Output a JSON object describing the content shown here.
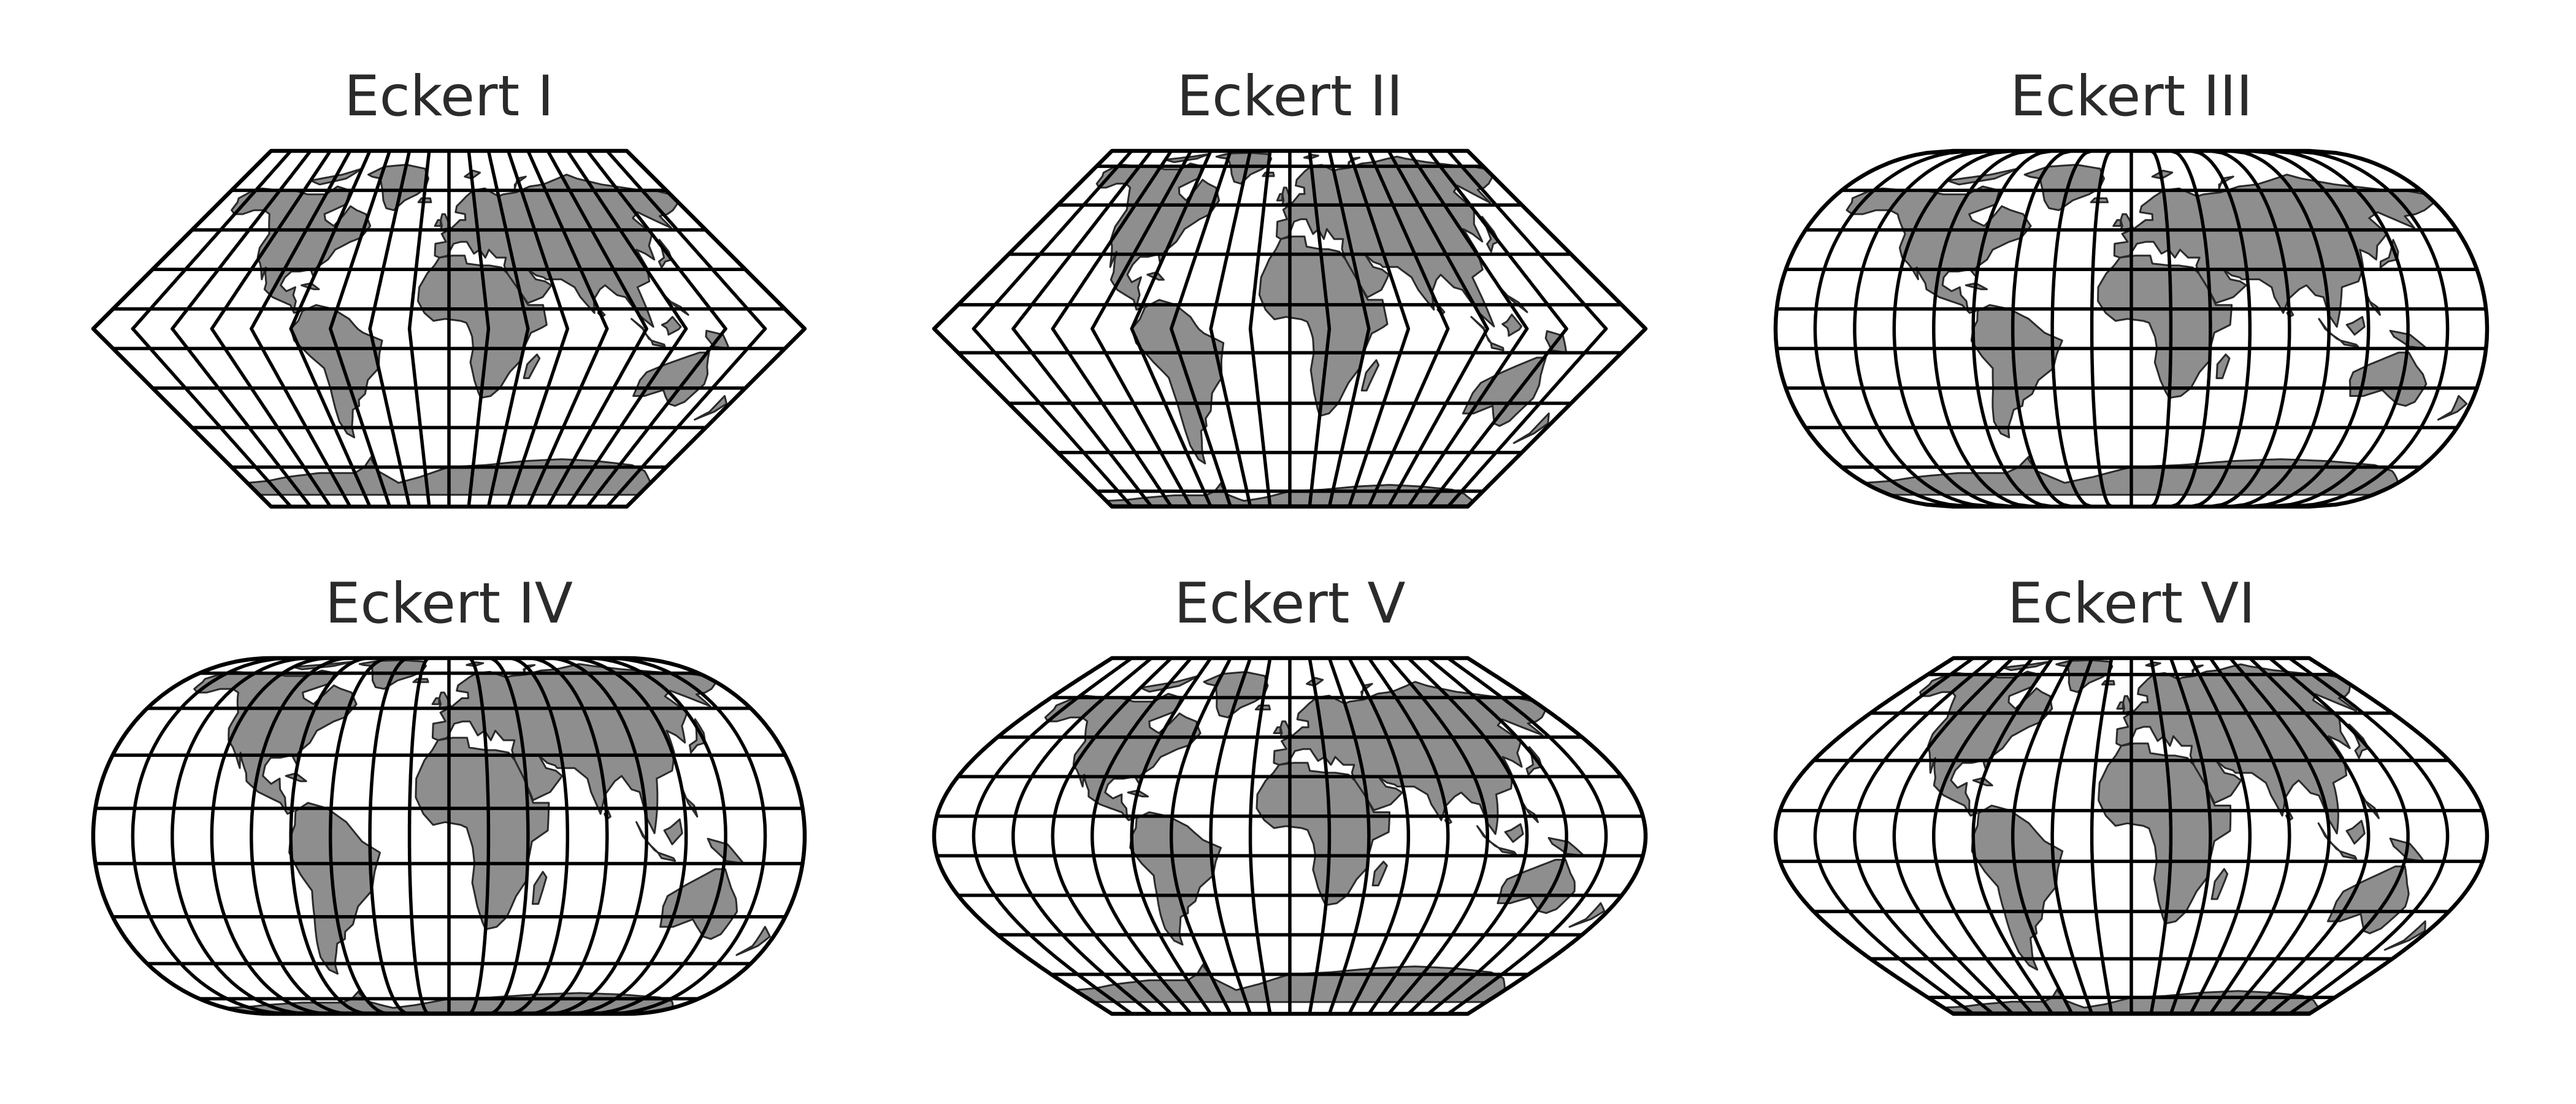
{
  "figure": {
    "panels": [
      {
        "id": "eckert1",
        "title": "Eckert I"
      },
      {
        "id": "eckert2",
        "title": "Eckert II"
      },
      {
        "id": "eckert3",
        "title": "Eckert III"
      },
      {
        "id": "eckert4",
        "title": "Eckert IV"
      },
      {
        "id": "eckert5",
        "title": "Eckert V"
      },
      {
        "id": "eckert6",
        "title": "Eckert VI"
      }
    ],
    "colors": {
      "land": "#8e8e8e",
      "coastline": "#2a2a2a",
      "graticule": "#000000",
      "ocean": "#ffffff",
      "title": "#2b2b2b"
    },
    "graticule": {
      "meridian_step_deg": 20,
      "parallel_step_deg": 20
    }
  }
}
